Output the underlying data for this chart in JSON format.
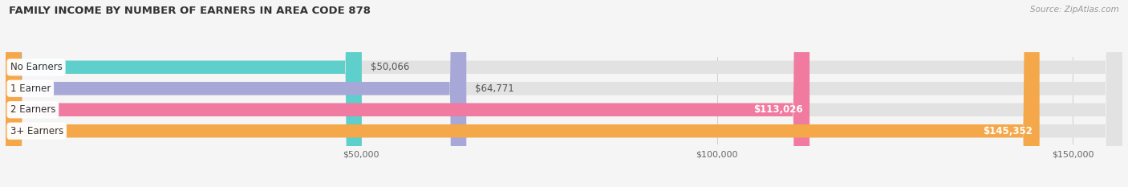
{
  "title": "FAMILY INCOME BY NUMBER OF EARNERS IN AREA CODE 878",
  "source": "Source: ZipAtlas.com",
  "categories": [
    "No Earners",
    "1 Earner",
    "2 Earners",
    "3+ Earners"
  ],
  "values": [
    50066,
    64771,
    113026,
    145352
  ],
  "bar_colors": [
    "#5ecfca",
    "#a8a8d8",
    "#f07aa0",
    "#f5a84a"
  ],
  "bar_bg_color": "#e2e2e2",
  "value_labels": [
    "$50,066",
    "$64,771",
    "$113,026",
    "$145,352"
  ],
  "xmin": 0,
  "xmax": 157000,
  "xticks": [
    50000,
    100000,
    150000
  ],
  "xtick_labels": [
    "$50,000",
    "$100,000",
    "$150,000"
  ],
  "figsize": [
    14.06,
    2.33
  ],
  "dpi": 100,
  "background_color": "#f5f5f5",
  "bar_height": 0.62,
  "label_inside_threshold": 0.6
}
